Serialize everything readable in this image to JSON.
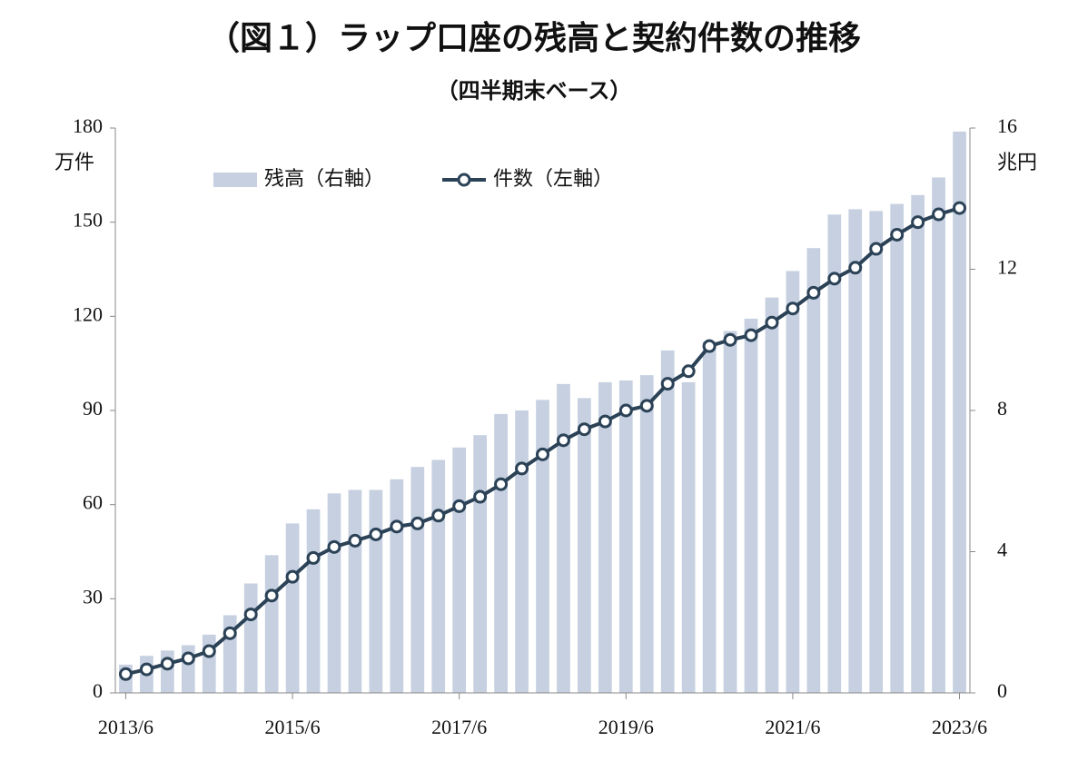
{
  "chart_data": {
    "type": "bar-line",
    "title": "（図１）ラップ口座の残高と契約件数の推移",
    "subtitle": "（四半期末ベース）",
    "y_label": "万件",
    "y2_label": "兆円",
    "categories": [
      "2013/6",
      null,
      null,
      null,
      null,
      null,
      null,
      null,
      "2015/6",
      null,
      null,
      null,
      null,
      null,
      null,
      null,
      "2017/6",
      null,
      null,
      null,
      null,
      null,
      null,
      null,
      "2019/6",
      null,
      null,
      null,
      null,
      null,
      null,
      null,
      "2021/6",
      null,
      null,
      null,
      null,
      null,
      null,
      null,
      "2023/6"
    ],
    "series": [
      {
        "name": "残高（右軸）",
        "type": "bar",
        "axis": "y2",
        "color": "#c6d0e0",
        "values": [
          0.8,
          1.05,
          1.2,
          1.35,
          1.65,
          2.2,
          3.1,
          3.9,
          4.8,
          5.2,
          5.65,
          5.75,
          5.75,
          6.05,
          6.4,
          6.6,
          6.95,
          7.3,
          7.9,
          8.0,
          8.3,
          8.75,
          8.35,
          8.8,
          8.85,
          9.0,
          9.7,
          8.8,
          9.95,
          10.25,
          10.6,
          11.2,
          11.95,
          12.6,
          13.55,
          13.7,
          13.65,
          13.85,
          14.1,
          14.6,
          15.9
        ]
      },
      {
        "name": "件数（左軸）",
        "type": "line",
        "axis": "y",
        "color": "#2b4257",
        "values": [
          6,
          7.5,
          9.3,
          11,
          13.3,
          19,
          25,
          31,
          37,
          43,
          46.5,
          48.5,
          50.5,
          53,
          54,
          56.5,
          59.5,
          62.5,
          66.5,
          71.5,
          76,
          80.5,
          84,
          86.5,
          90,
          91.5,
          98.5,
          102.5,
          110.5,
          112.5,
          114,
          118,
          122.5,
          127.5,
          132,
          135.5,
          141.5,
          146,
          150,
          152.5,
          154.5
        ]
      }
    ],
    "ylim": [
      0,
      180
    ],
    "yticks": [
      0,
      30,
      60,
      90,
      120,
      150,
      180
    ],
    "y2lim": [
      0,
      16
    ],
    "y2ticks": [
      0,
      4,
      8,
      12,
      16
    ],
    "grid": false
  }
}
